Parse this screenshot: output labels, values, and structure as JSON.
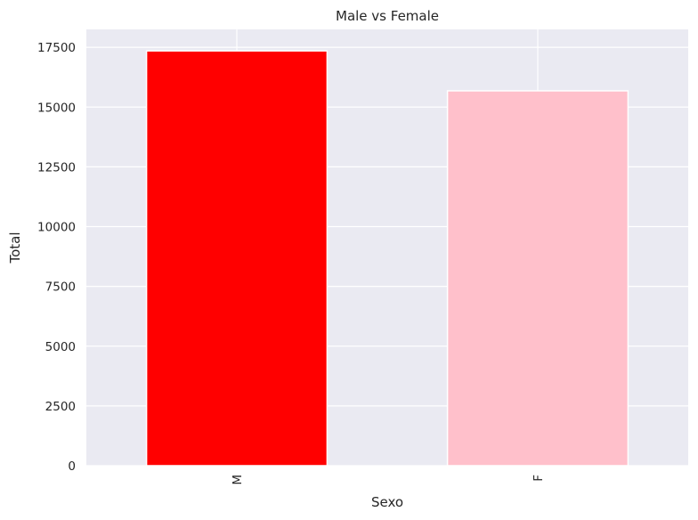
{
  "chart_data": {
    "type": "bar",
    "title": "Male vs Female",
    "xlabel": "Sexo",
    "ylabel": "Total",
    "categories": [
      "M",
      "F"
    ],
    "values": [
      17350,
      15680
    ],
    "colors": [
      "#ff0000",
      "#ffc0cb"
    ],
    "ylim": [
      0,
      18250
    ],
    "yticks": [
      0,
      2500,
      5000,
      7500,
      10000,
      12500,
      15000,
      17500
    ],
    "ytick_labels": [
      "0",
      "2500",
      "5000",
      "7500",
      "10000",
      "12500",
      "15000",
      "17500"
    ],
    "grid": true,
    "background": "#eaeaf2"
  }
}
